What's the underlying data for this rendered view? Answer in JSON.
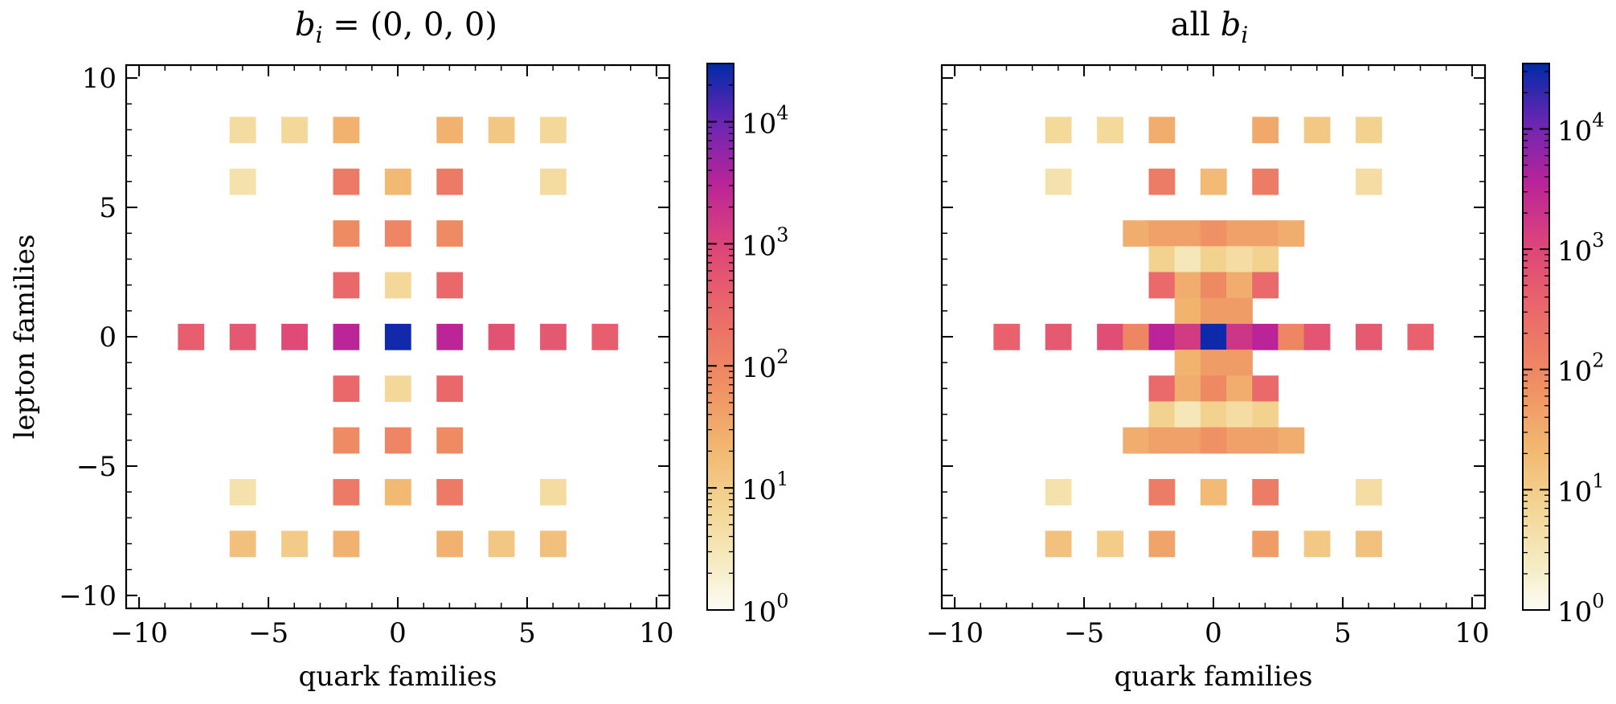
{
  "chart_data": [
    {
      "type": "heatmap",
      "title": "b_i = (0,0,0)",
      "title_parts": {
        "symbol": "b",
        "subscript": "i",
        "rest": " = (0, 0, 0)"
      },
      "xlabel": "quark families",
      "ylabel": "lepton families",
      "xlim": [
        -10.5,
        10.5
      ],
      "ylim": [
        -10.5,
        10.5
      ],
      "xticks": [
        -10,
        -5,
        0,
        5,
        10
      ],
      "yticks": [
        -10,
        -5,
        0,
        5,
        10
      ],
      "xtick_labels": [
        "−10",
        "−5",
        "0",
        "5",
        "10"
      ],
      "ytick_labels": [
        "−10",
        "−5",
        "0",
        "5",
        "10"
      ],
      "colorscale": "magma_r-like (pale yellow → orange → magenta → purple → blue)",
      "color_log": true,
      "color_range": [
        1,
        30000
      ],
      "colorbar_ticks": [
        1,
        10,
        100,
        1000,
        10000
      ],
      "colorbar_labels": [
        {
          "base": "10",
          "exp": "0"
        },
        {
          "base": "10",
          "exp": "1"
        },
        {
          "base": "10",
          "exp": "2"
        },
        {
          "base": "10",
          "exp": "3"
        },
        {
          "base": "10",
          "exp": "4"
        }
      ],
      "cells": [
        [
          -6,
          8,
          5
        ],
        [
          -4,
          8,
          6
        ],
        [
          -2,
          8,
          25
        ],
        [
          2,
          8,
          25
        ],
        [
          4,
          8,
          12
        ],
        [
          6,
          8,
          6
        ],
        [
          -6,
          6,
          4
        ],
        [
          -2,
          6,
          150
        ],
        [
          0,
          6,
          20
        ],
        [
          2,
          6,
          150
        ],
        [
          6,
          6,
          5
        ],
        [
          -2,
          4,
          80
        ],
        [
          0,
          4,
          100
        ],
        [
          2,
          4,
          80
        ],
        [
          -2,
          2,
          300
        ],
        [
          0,
          2,
          6
        ],
        [
          2,
          2,
          300
        ],
        [
          -8,
          0,
          400
        ],
        [
          -6,
          0,
          500
        ],
        [
          -4,
          0,
          800
        ],
        [
          -2,
          0,
          3000
        ],
        [
          0,
          0,
          25000
        ],
        [
          2,
          0,
          3000
        ],
        [
          4,
          0,
          600
        ],
        [
          6,
          0,
          500
        ],
        [
          8,
          0,
          400
        ],
        [
          -2,
          -2,
          300
        ],
        [
          0,
          -2,
          6
        ],
        [
          2,
          -2,
          300
        ],
        [
          -2,
          -4,
          80
        ],
        [
          0,
          -4,
          100
        ],
        [
          2,
          -4,
          80
        ],
        [
          -6,
          -6,
          4
        ],
        [
          -2,
          -6,
          150
        ],
        [
          0,
          -6,
          20
        ],
        [
          2,
          -6,
          150
        ],
        [
          6,
          -6,
          5
        ],
        [
          -6,
          -8,
          15
        ],
        [
          -4,
          -8,
          10
        ],
        [
          -2,
          -8,
          25
        ],
        [
          2,
          -8,
          25
        ],
        [
          4,
          -8,
          12
        ],
        [
          6,
          -8,
          15
        ]
      ]
    },
    {
      "type": "heatmap",
      "title": "all b_i",
      "title_parts": {
        "symbol": "b",
        "subscript": "i",
        "rest": "all "
      },
      "xlabel": "quark families",
      "ylabel": "",
      "xlim": [
        -10.5,
        10.5
      ],
      "ylim": [
        -10.5,
        10.5
      ],
      "xticks": [
        -10,
        -5,
        0,
        5,
        10
      ],
      "yticks": [
        -10,
        -5,
        0,
        5,
        10
      ],
      "xtick_labels": [
        "−10",
        "−5",
        "0",
        "5",
        "10"
      ],
      "ytick_labels": [],
      "colorscale": "magma_r-like (pale yellow → orange → magenta → purple → blue)",
      "color_log": true,
      "color_range": [
        1,
        35000
      ],
      "colorbar_ticks": [
        1,
        10,
        100,
        1000,
        10000
      ],
      "colorbar_labels": [
        {
          "base": "10",
          "exp": "0"
        },
        {
          "base": "10",
          "exp": "1"
        },
        {
          "base": "10",
          "exp": "2"
        },
        {
          "base": "10",
          "exp": "3"
        },
        {
          "base": "10",
          "exp": "4"
        }
      ],
      "cells": [
        [
          -6,
          8,
          6
        ],
        [
          -4,
          8,
          6
        ],
        [
          -2,
          8,
          30
        ],
        [
          2,
          8,
          35
        ],
        [
          4,
          8,
          12
        ],
        [
          6,
          8,
          8
        ],
        [
          -6,
          6,
          4
        ],
        [
          -2,
          6,
          150
        ],
        [
          0,
          6,
          20
        ],
        [
          2,
          6,
          150
        ],
        [
          6,
          6,
          5
        ],
        [
          -3,
          4,
          30
        ],
        [
          -2,
          4,
          45
        ],
        [
          -1,
          4,
          45
        ],
        [
          0,
          4,
          70
        ],
        [
          1,
          4,
          45
        ],
        [
          2,
          4,
          45
        ],
        [
          3,
          4,
          30
        ],
        [
          -2,
          3,
          8
        ],
        [
          -1,
          3,
          3
        ],
        [
          0,
          3,
          8
        ],
        [
          1,
          3,
          5
        ],
        [
          2,
          3,
          8
        ],
        [
          -2,
          2,
          300
        ],
        [
          -1,
          2,
          30
        ],
        [
          0,
          2,
          90
        ],
        [
          1,
          2,
          30
        ],
        [
          2,
          2,
          300
        ],
        [
          -1,
          1,
          25
        ],
        [
          0,
          1,
          50
        ],
        [
          1,
          1,
          50
        ],
        [
          -8,
          0,
          400
        ],
        [
          -6,
          0,
          500
        ],
        [
          -4,
          0,
          800
        ],
        [
          -3,
          0,
          100
        ],
        [
          -2,
          0,
          3500
        ],
        [
          -1,
          0,
          1500
        ],
        [
          0,
          0,
          30000
        ],
        [
          1,
          0,
          1800
        ],
        [
          2,
          0,
          3500
        ],
        [
          3,
          0,
          100
        ],
        [
          4,
          0,
          600
        ],
        [
          6,
          0,
          500
        ],
        [
          8,
          0,
          400
        ],
        [
          -1,
          -1,
          25
        ],
        [
          0,
          -1,
          50
        ],
        [
          1,
          -1,
          50
        ],
        [
          -2,
          -2,
          300
        ],
        [
          -1,
          -2,
          30
        ],
        [
          0,
          -2,
          90
        ],
        [
          1,
          -2,
          30
        ],
        [
          2,
          -2,
          300
        ],
        [
          -2,
          -3,
          8
        ],
        [
          -1,
          -3,
          3
        ],
        [
          0,
          -3,
          8
        ],
        [
          1,
          -3,
          5
        ],
        [
          2,
          -3,
          8
        ],
        [
          -3,
          -4,
          30
        ],
        [
          -2,
          -4,
          45
        ],
        [
          -1,
          -4,
          45
        ],
        [
          0,
          -4,
          70
        ],
        [
          1,
          -4,
          45
        ],
        [
          2,
          -4,
          45
        ],
        [
          3,
          -4,
          30
        ],
        [
          -6,
          -6,
          4
        ],
        [
          -2,
          -6,
          150
        ],
        [
          0,
          -6,
          20
        ],
        [
          2,
          -6,
          150
        ],
        [
          6,
          -6,
          5
        ],
        [
          -6,
          -8,
          15
        ],
        [
          -4,
          -8,
          10
        ],
        [
          -2,
          -8,
          40
        ],
        [
          2,
          -8,
          50
        ],
        [
          4,
          -8,
          12
        ],
        [
          6,
          -8,
          15
        ]
      ]
    }
  ]
}
